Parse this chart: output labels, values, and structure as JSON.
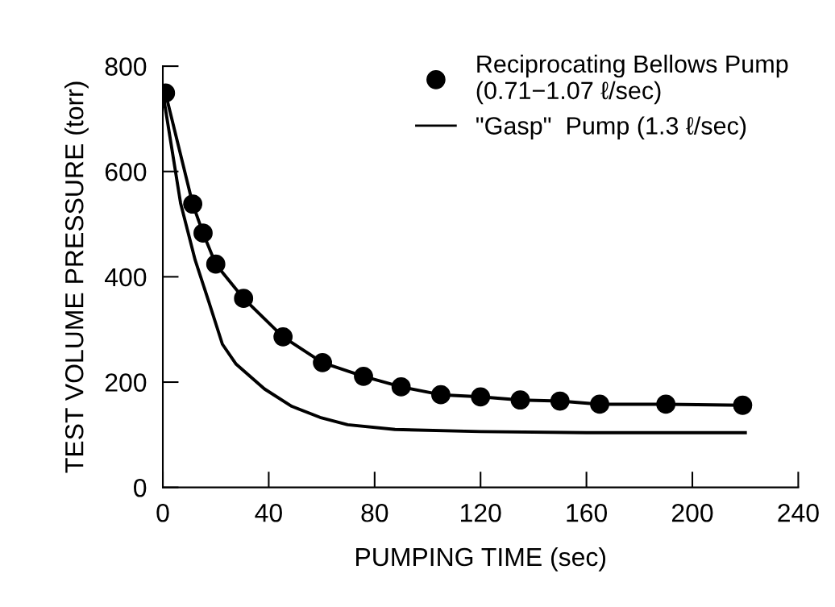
{
  "chart_data": {
    "type": "line",
    "xlabel": "PUMPING TIME (sec)",
    "ylabel": "TEST VOLUME PRESSURE (torr)",
    "xlim": [
      0,
      240
    ],
    "xticks": [
      0,
      40,
      80,
      120,
      160,
      200,
      240
    ],
    "ylim": [
      0,
      800
    ],
    "yticks": [
      0,
      200,
      400,
      600,
      800
    ],
    "grid": false,
    "legend": "top right",
    "series": [
      {
        "name": "Reciprocating Bellows Pump\n(0.71−1.07 ℓ/sec)",
        "type": "scatter",
        "marker": "circle",
        "color": "#000000",
        "x": [
          1,
          11.3,
          15.2,
          20,
          30.5,
          45.4,
          60.3,
          75.8,
          90,
          105,
          120,
          135,
          150,
          165,
          190,
          219
        ],
        "values": [
          749,
          538,
          483,
          424,
          359,
          286,
          237,
          211,
          191,
          176,
          172,
          166,
          164,
          158,
          158,
          156
        ]
      },
      {
        "marker": "none",
        "line_style": "solid",
        "color": "#000000",
        "x": [
          1,
          11.3,
          15.2,
          20,
          30.5,
          45.4,
          60.3,
          75.8,
          90,
          105,
          120,
          135,
          150,
          165,
          190,
          219
        ],
        "values": [
          749,
          538,
          483,
          424,
          359,
          286,
          237,
          211,
          191,
          176,
          172,
          166,
          164,
          158,
          158,
          156
        ]
      },
      {
        "name": "\"Gasp\"  Pump (1.3 ℓ/sec)",
        "marker": "none",
        "line_style": "solid",
        "color": "#000000",
        "x": [
          0,
          6.7,
          12.2,
          17.4,
          22.5,
          27.7,
          38.4,
          48.7,
          59.4,
          69.8,
          87.7,
          120,
          160,
          220
        ],
        "values": [
          750,
          540,
          432,
          352,
          272,
          234,
          187,
          154,
          133,
          119,
          110,
          106,
          104,
          104
        ]
      }
    ]
  }
}
